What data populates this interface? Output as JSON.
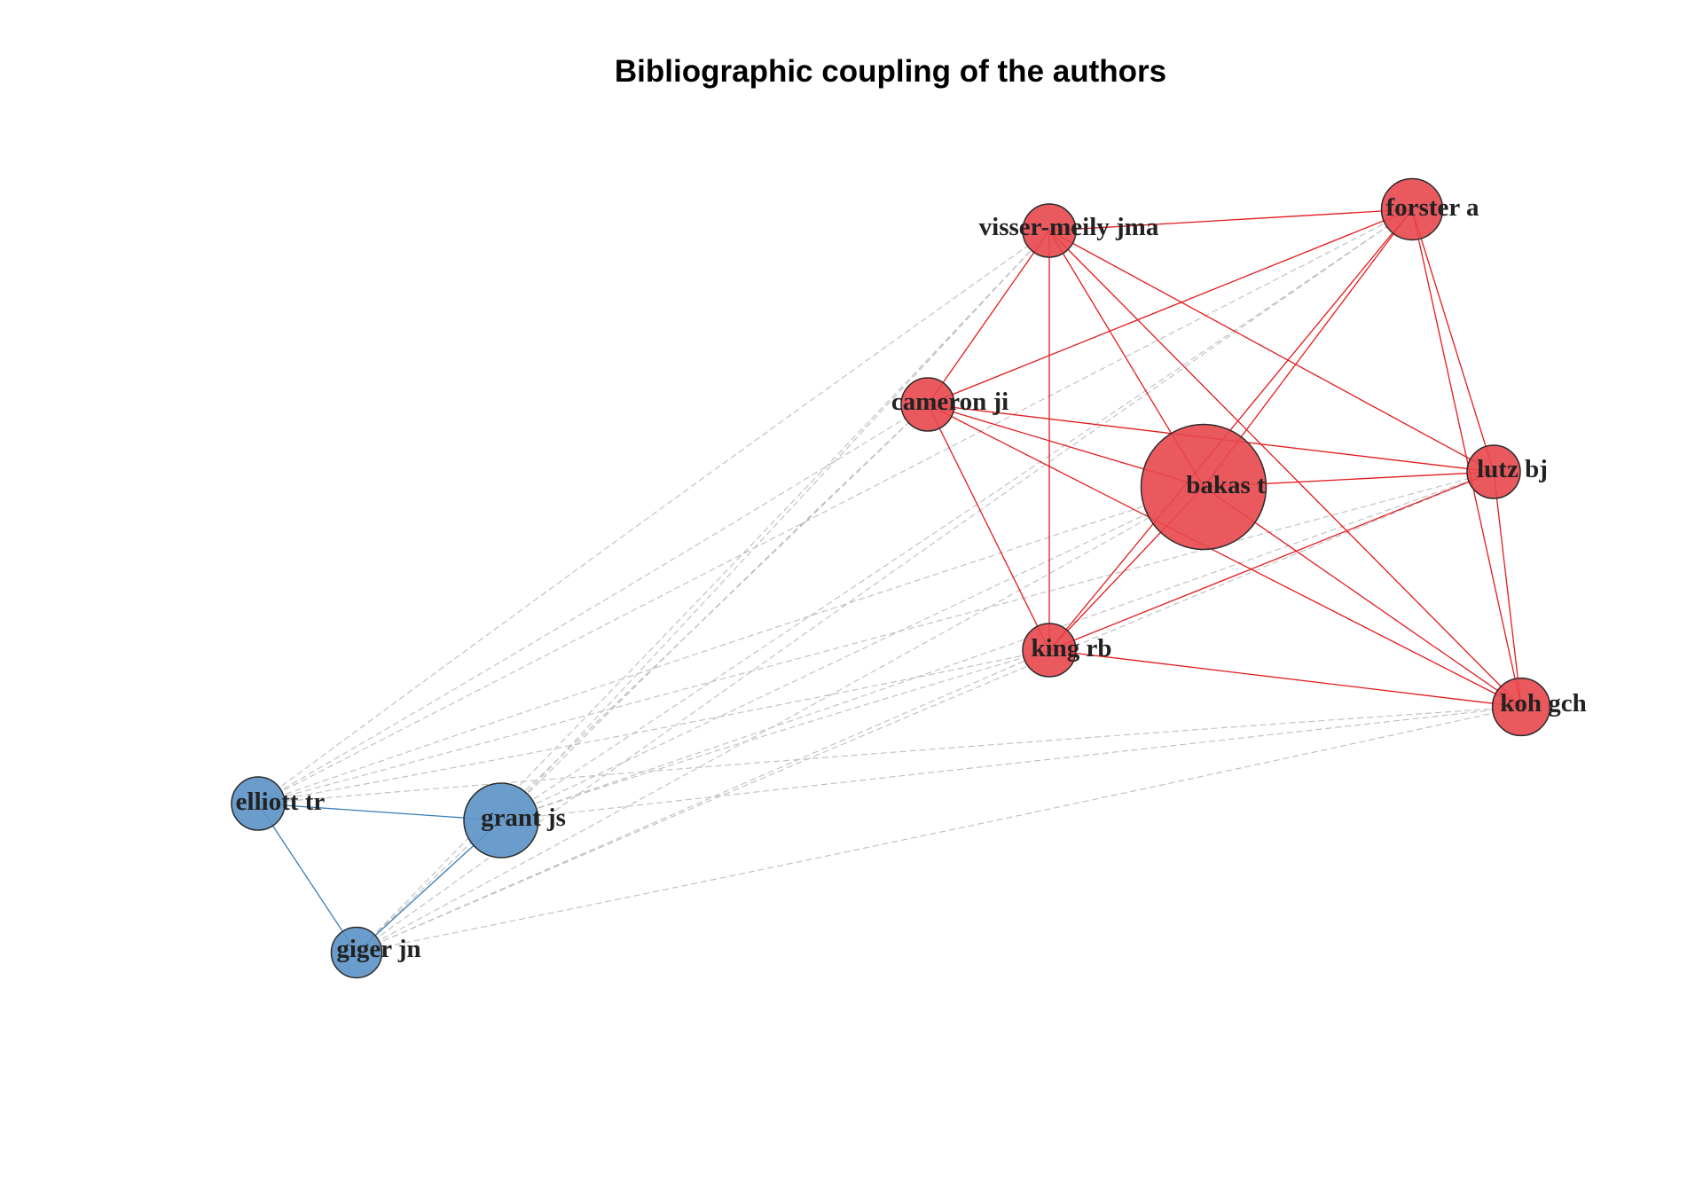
{
  "title": "Bibliographic coupling of the authors",
  "colors": {
    "cluster_1": "#E8474C",
    "cluster_2": "#5B92C6",
    "cluster_1_edge": "#E41A1C",
    "cluster_2_edge": "#377EB8",
    "inter_edge": "#BDBDBD"
  },
  "nodes": [
    {
      "id": "visser-meily jma",
      "label": "visser-meily jma",
      "cluster": 1,
      "size": 1
    },
    {
      "id": "forster a",
      "label": "forster a",
      "cluster": 1,
      "size": 1.15
    },
    {
      "id": "cameron ji",
      "label": "cameron ji",
      "cluster": 1,
      "size": 1
    },
    {
      "id": "bakas t",
      "label": "bakas t",
      "cluster": 1,
      "size": 2.35
    },
    {
      "id": "lutz bj",
      "label": "lutz bj",
      "cluster": 1,
      "size": 1
    },
    {
      "id": "king rb",
      "label": "king rb",
      "cluster": 1,
      "size": 1
    },
    {
      "id": "koh gch",
      "label": "koh gch",
      "cluster": 1,
      "size": 1.08
    },
    {
      "id": "elliott tr",
      "label": "elliott tr",
      "cluster": 2,
      "size": 1
    },
    {
      "id": "grant js",
      "label": "grant js",
      "cluster": 2,
      "size": 1.4
    },
    {
      "id": "giger jn",
      "label": "giger jn",
      "cluster": 2,
      "size": 0.95
    }
  ],
  "edges": [
    {
      "source": "visser-meily jma",
      "target": "forster a",
      "type": "intra",
      "cluster": 1
    },
    {
      "source": "visser-meily jma",
      "target": "cameron ji",
      "type": "intra",
      "cluster": 1
    },
    {
      "source": "visser-meily jma",
      "target": "bakas t",
      "type": "intra",
      "cluster": 1
    },
    {
      "source": "visser-meily jma",
      "target": "lutz bj",
      "type": "intra",
      "cluster": 1
    },
    {
      "source": "visser-meily jma",
      "target": "king rb",
      "type": "intra",
      "cluster": 1
    },
    {
      "source": "visser-meily jma",
      "target": "koh gch",
      "type": "intra",
      "cluster": 1
    },
    {
      "source": "forster a",
      "target": "cameron ji",
      "type": "intra",
      "cluster": 1
    },
    {
      "source": "forster a",
      "target": "bakas t",
      "type": "intra",
      "cluster": 1
    },
    {
      "source": "forster a",
      "target": "lutz bj",
      "type": "intra",
      "cluster": 1
    },
    {
      "source": "forster a",
      "target": "king rb",
      "type": "intra",
      "cluster": 1
    },
    {
      "source": "forster a",
      "target": "koh gch",
      "type": "intra",
      "cluster": 1
    },
    {
      "source": "cameron ji",
      "target": "bakas t",
      "type": "intra",
      "cluster": 1
    },
    {
      "source": "cameron ji",
      "target": "lutz bj",
      "type": "intra",
      "cluster": 1
    },
    {
      "source": "cameron ji",
      "target": "king rb",
      "type": "intra",
      "cluster": 1
    },
    {
      "source": "cameron ji",
      "target": "koh gch",
      "type": "intra",
      "cluster": 1
    },
    {
      "source": "bakas t",
      "target": "lutz bj",
      "type": "intra",
      "cluster": 1
    },
    {
      "source": "bakas t",
      "target": "king rb",
      "type": "intra",
      "cluster": 1
    },
    {
      "source": "bakas t",
      "target": "koh gch",
      "type": "intra",
      "cluster": 1
    },
    {
      "source": "lutz bj",
      "target": "king rb",
      "type": "intra",
      "cluster": 1
    },
    {
      "source": "lutz bj",
      "target": "koh gch",
      "type": "intra",
      "cluster": 1
    },
    {
      "source": "king rb",
      "target": "koh gch",
      "type": "intra",
      "cluster": 1
    },
    {
      "source": "elliott tr",
      "target": "grant js",
      "type": "intra",
      "cluster": 2
    },
    {
      "source": "elliott tr",
      "target": "giger jn",
      "type": "intra",
      "cluster": 2
    },
    {
      "source": "grant js",
      "target": "giger jn",
      "type": "intra",
      "cluster": 2
    },
    {
      "source": "elliott tr",
      "target": "visser-meily jma",
      "type": "inter"
    },
    {
      "source": "elliott tr",
      "target": "forster a",
      "type": "inter"
    },
    {
      "source": "elliott tr",
      "target": "cameron ji",
      "type": "inter"
    },
    {
      "source": "elliott tr",
      "target": "bakas t",
      "type": "inter"
    },
    {
      "source": "elliott tr",
      "target": "lutz bj",
      "type": "inter"
    },
    {
      "source": "elliott tr",
      "target": "king rb",
      "type": "inter"
    },
    {
      "source": "elliott tr",
      "target": "koh gch",
      "type": "inter"
    },
    {
      "source": "grant js",
      "target": "visser-meily jma",
      "type": "inter"
    },
    {
      "source": "grant js",
      "target": "forster a",
      "type": "inter"
    },
    {
      "source": "grant js",
      "target": "cameron ji",
      "type": "inter"
    },
    {
      "source": "grant js",
      "target": "bakas t",
      "type": "inter"
    },
    {
      "source": "grant js",
      "target": "lutz bj",
      "type": "inter"
    },
    {
      "source": "grant js",
      "target": "king rb",
      "type": "inter"
    },
    {
      "source": "grant js",
      "target": "koh gch",
      "type": "inter"
    },
    {
      "source": "giger jn",
      "target": "visser-meily jma",
      "type": "inter"
    },
    {
      "source": "giger jn",
      "target": "forster a",
      "type": "inter"
    },
    {
      "source": "giger jn",
      "target": "cameron ji",
      "type": "inter"
    },
    {
      "source": "giger jn",
      "target": "bakas t",
      "type": "inter"
    },
    {
      "source": "giger jn",
      "target": "lutz bj",
      "type": "inter"
    },
    {
      "source": "giger jn",
      "target": "king rb",
      "type": "inter"
    },
    {
      "source": "giger jn",
      "target": "koh gch",
      "type": "inter"
    }
  ]
}
